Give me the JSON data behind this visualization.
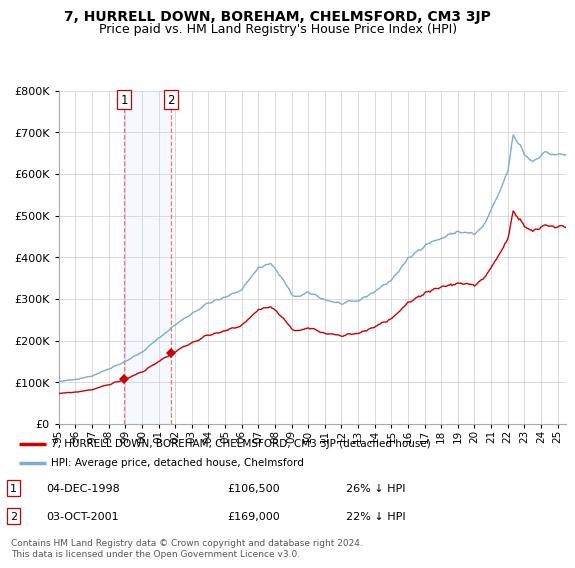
{
  "title": "7, HURRELL DOWN, BOREHAM, CHELMSFORD, CM3 3JP",
  "subtitle": "Price paid vs. HM Land Registry's House Price Index (HPI)",
  "legend_line1": "7, HURRELL DOWN, BOREHAM, CHELMSFORD, CM3 3JP (detached house)",
  "legend_line2": "HPI: Average price, detached house, Chelmsford",
  "annotation1_date": "04-DEC-1998",
  "annotation1_price": "£106,500",
  "annotation1_note": "26% ↓ HPI",
  "annotation2_date": "03-OCT-2001",
  "annotation2_price": "£169,000",
  "annotation2_note": "22% ↓ HPI",
  "sale1_year": 1998.917,
  "sale1_price": 106500,
  "sale2_year": 2001.75,
  "sale2_price": 169000,
  "footer": "Contains HM Land Registry data © Crown copyright and database right 2024.\nThis data is licensed under the Open Government Licence v3.0.",
  "red_color": "#cc0000",
  "blue_color": "#7aadcf",
  "shade_color": "#ddeeff",
  "ylim": [
    0,
    800000
  ],
  "background_color": "#ffffff"
}
